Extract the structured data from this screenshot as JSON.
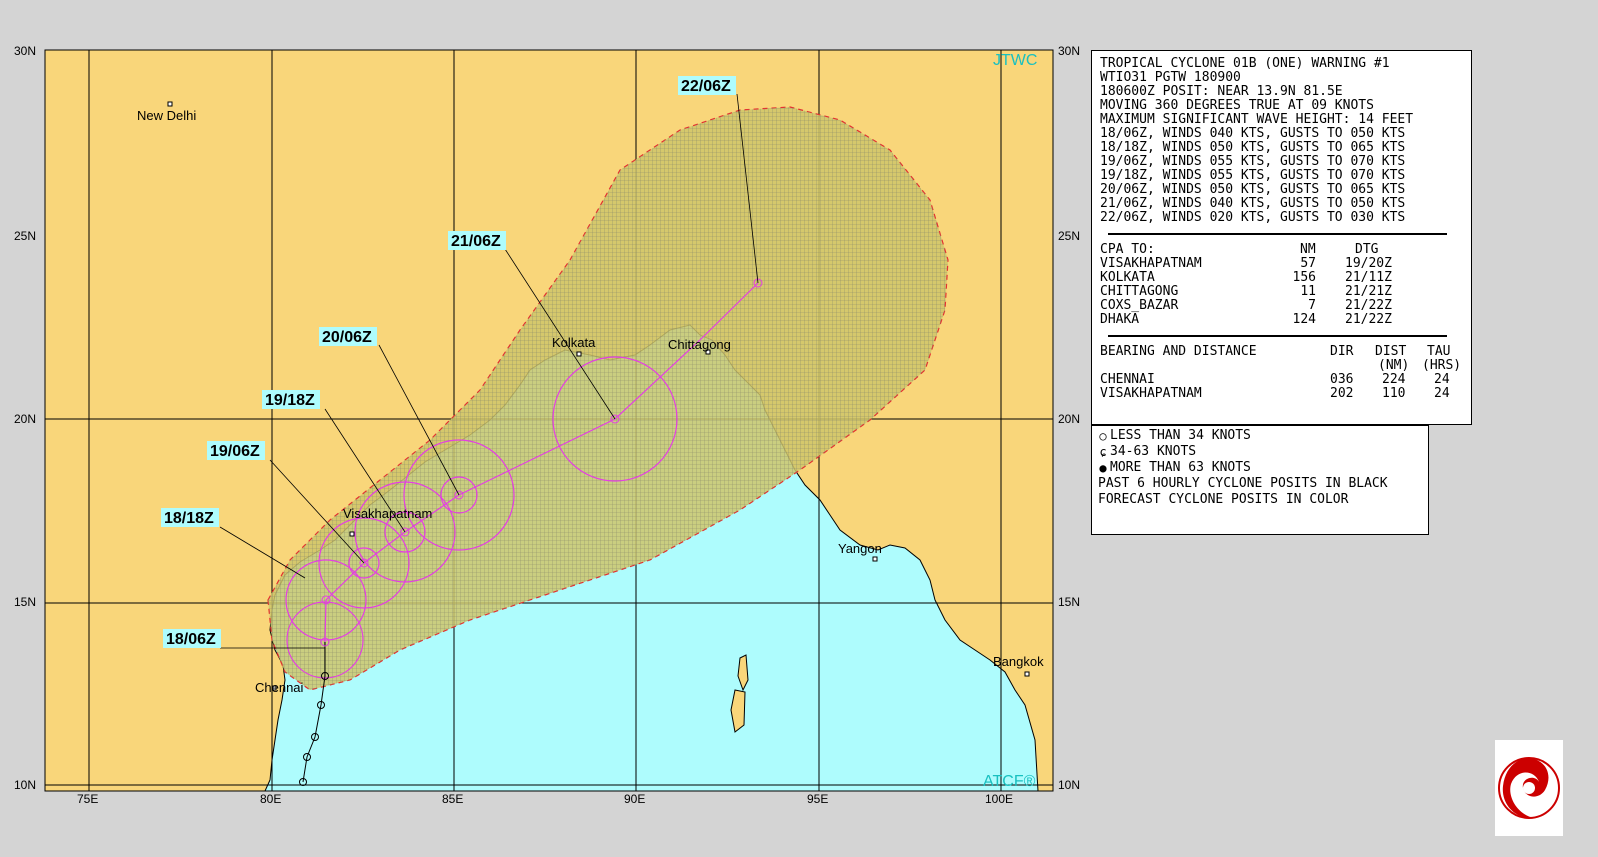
{
  "map": {
    "brand_top": "JTWC",
    "brand_bottom": "ATCF®",
    "lat_ticks": [
      "30N",
      "25N",
      "20N",
      "15N",
      "10N"
    ],
    "lon_ticks": [
      "75E",
      "80E",
      "85E",
      "90E",
      "95E",
      "100E"
    ],
    "cities": [
      {
        "name": "New Delhi",
        "lat": 28.6,
        "lon": 77.2
      },
      {
        "name": "Kolkata",
        "lat": 22.6,
        "lon": 88.4
      },
      {
        "name": "Chittagong",
        "lat": 22.3,
        "lon": 91.8
      },
      {
        "name": "Visakhapatnam",
        "lat": 17.7,
        "lon": 83.3
      },
      {
        "name": "Yangon",
        "lat": 16.8,
        "lon": 96.2
      },
      {
        "name": "Chennai",
        "lat": 13.1,
        "lon": 80.3
      },
      {
        "name": "Bangkok",
        "lat": 13.8,
        "lon": 100.5
      }
    ],
    "forecast_tags": [
      "22/06Z",
      "21/06Z",
      "20/06Z",
      "19/18Z",
      "19/06Z",
      "18/18Z",
      "18/06Z"
    ],
    "colors": {
      "land": "#f9d67a",
      "sea": "#aefcfd",
      "danger": "#cfc56a",
      "track": "#e43de4",
      "brand": "#19c0c0",
      "boundary": "#e43030"
    }
  },
  "warning": {
    "header": [
      "TROPICAL CYCLONE 01B (ONE) WARNING #1",
      "WTIO31 PGTW 180900",
      "180600Z POSIT: NEAR 13.9N 81.5E",
      "MOVING 360 DEGREES TRUE AT 09 KNOTS",
      "MAXIMUM SIGNIFICANT WAVE HEIGHT: 14 FEET"
    ],
    "forecasts": [
      "18/06Z, WINDS 040 KTS, GUSTS TO 050 KTS",
      "18/18Z, WINDS 050 KTS, GUSTS TO 065 KTS",
      "19/06Z, WINDS 055 KTS, GUSTS TO 070 KTS",
      "19/18Z, WINDS 055 KTS, GUSTS TO 070 KTS",
      "20/06Z, WINDS 050 KTS, GUSTS TO 065 KTS",
      "21/06Z, WINDS 040 KTS, GUSTS TO 050 KTS",
      "22/06Z, WINDS 020 KTS, GUSTS TO 030 KTS"
    ],
    "cpa_header": {
      "label": "CPA TO:",
      "nm": "NM",
      "dtg": "DTG"
    },
    "cpa": [
      {
        "place": "VISAKHAPATNAM",
        "nm": "57",
        "dtg": "19/20Z"
      },
      {
        "place": "KOLKATA",
        "nm": "156",
        "dtg": "21/11Z"
      },
      {
        "place": "CHITTAGONG",
        "nm": "11",
        "dtg": "21/21Z"
      },
      {
        "place": "COXS_BAZAR",
        "nm": "7",
        "dtg": "21/22Z"
      },
      {
        "place": "DHAKA",
        "nm": "124",
        "dtg": "21/22Z"
      }
    ],
    "bd_header": {
      "label": "BEARING AND DISTANCE",
      "dir": "DIR",
      "dist": "DIST",
      "tau": "TAU",
      "dist_unit": "(NM)",
      "tau_unit": "(HRS)"
    },
    "bd": [
      {
        "place": "CHENNAI",
        "dir": "036",
        "dist": "224",
        "tau": "24"
      },
      {
        "place": "VISAKHAPATNAM",
        "dir": "202",
        "dist": "110",
        "tau": "24"
      }
    ]
  },
  "legend": {
    "items": [
      {
        "icon": "open-circle-icon",
        "text": "LESS THAN 34 KNOTS"
      },
      {
        "icon": "open-storm-symbol-icon",
        "text": "34-63 KNOTS"
      },
      {
        "icon": "filled-storm-symbol-icon",
        "text": "MORE THAN 63 KNOTS"
      }
    ],
    "notes": [
      "PAST 6 HOURLY CYCLONE POSITS IN BLACK",
      "FORECAST CYCLONE POSITS IN COLOR"
    ]
  }
}
